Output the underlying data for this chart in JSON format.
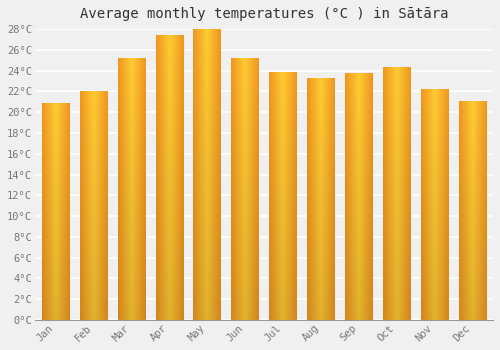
{
  "title": "Average monthly temperatures (°C ) in Sātāra",
  "months": [
    "Jan",
    "Feb",
    "Mar",
    "Apr",
    "May",
    "Jun",
    "Jul",
    "Aug",
    "Sep",
    "Oct",
    "Nov",
    "Dec"
  ],
  "values": [
    20.8,
    22.0,
    25.2,
    27.4,
    28.0,
    25.2,
    23.8,
    23.2,
    23.7,
    24.3,
    22.2,
    21.0
  ],
  "bar_color_left": "#F5A623",
  "bar_color_right": "#FFD040",
  "bar_color_center": "#FFC125",
  "background_color": "#f0f0f0",
  "plot_bg_color": "#f0f0f0",
  "grid_color": "#ffffff",
  "ylim": [
    0,
    28
  ],
  "ytick_max": 28,
  "ytick_step": 2,
  "title_fontsize": 10,
  "tick_fontsize": 7.5,
  "tick_color": "#777777",
  "title_color": "#333333"
}
